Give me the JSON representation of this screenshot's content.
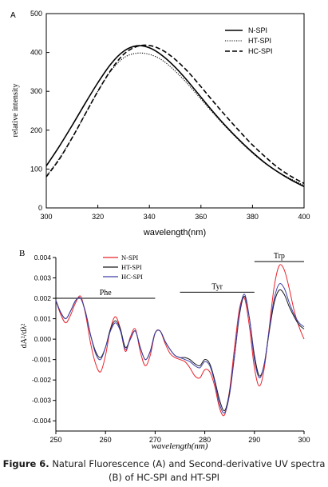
{
  "chart_data": [
    {
      "panel_label": "A",
      "type": "line",
      "xlabel": "wavelength(nm)",
      "ylabel": "relative intensity",
      "xlim": [
        300,
        400
      ],
      "ylim": [
        0,
        500
      ],
      "xticks": [
        "300",
        "320",
        "340",
        "360",
        "380",
        "400"
      ],
      "yticks": [
        "0",
        "100",
        "200",
        "300",
        "400",
        "500"
      ],
      "grid": false,
      "legend_position": "top-right",
      "series": [
        {
          "name": "N-SPI",
          "style": "solid",
          "x": [
            300,
            305,
            310,
            315,
            320,
            325,
            330,
            335,
            340,
            345,
            350,
            355,
            360,
            365,
            370,
            375,
            380,
            385,
            390,
            395,
            400
          ],
          "y": [
            108,
            158,
            212,
            268,
            322,
            370,
            403,
            417,
            412,
            392,
            362,
            325,
            285,
            245,
            208,
            174,
            143,
            115,
            92,
            72,
            55
          ]
        },
        {
          "name": "HT-SPI",
          "style": "dotted",
          "x": [
            300,
            305,
            310,
            315,
            320,
            325,
            330,
            335,
            340,
            345,
            350,
            355,
            360,
            365,
            370,
            375,
            380,
            385,
            390,
            395,
            400
          ],
          "y": [
            82,
            127,
            180,
            240,
            300,
            352,
            386,
            398,
            395,
            380,
            352,
            318,
            280,
            242,
            206,
            172,
            141,
            114,
            92,
            74,
            58
          ]
        },
        {
          "name": "HC-SPI",
          "style": "dashed",
          "x": [
            300,
            305,
            310,
            315,
            320,
            325,
            330,
            335,
            340,
            345,
            350,
            355,
            360,
            365,
            370,
            375,
            380,
            385,
            390,
            395,
            400
          ],
          "y": [
            80,
            125,
            180,
            240,
            300,
            354,
            395,
            415,
            418,
            406,
            382,
            350,
            312,
            272,
            234,
            197,
            162,
            131,
            103,
            81,
            63
          ]
        }
      ]
    },
    {
      "panel_label": "B",
      "type": "line",
      "xlabel": "wavelength(nm)",
      "ylabel": "dA²/dλ²",
      "xlim": [
        250,
        300
      ],
      "ylim": [
        -0.0045,
        0.004
      ],
      "xticks": [
        "250",
        "260",
        "270",
        "280",
        "290",
        "300"
      ],
      "yticks": [
        "0.004",
        "0.003",
        "0.002",
        "0.001",
        "0.000",
        "-0.001",
        "-0.002",
        "-0.003",
        "-0.004"
      ],
      "grid": false,
      "legend_position": "top-left",
      "annotations": [
        {
          "text": "Phe",
          "x_range": [
            250,
            270
          ]
        },
        {
          "text": "Tyr",
          "x_range": [
            275,
            290
          ]
        },
        {
          "text": "Trp",
          "x_range": [
            290,
            300
          ]
        }
      ],
      "series": [
        {
          "name": "N-SPI",
          "color": "#e8242c",
          "x": [
            250,
            251,
            252,
            253,
            254,
            255,
            256,
            257,
            258,
            259,
            260,
            261,
            262,
            263,
            264,
            265,
            266,
            267,
            268,
            269,
            270,
            271,
            272,
            273,
            274,
            275,
            276,
            277,
            278,
            279,
            280,
            281,
            282,
            283,
            284,
            285,
            286,
            287,
            288,
            289,
            290,
            291,
            292,
            293,
            294,
            295,
            296,
            297,
            298,
            299,
            300
          ],
          "y": [
            0.0019,
            0.0012,
            0.0008,
            0.0012,
            0.0018,
            0.0021,
            0.0012,
            -0.0002,
            -0.0012,
            -0.0016,
            -0.0008,
            0.0005,
            0.0011,
            0.0005,
            -0.0006,
            0.0001,
            0.0005,
            -0.0006,
            -0.0013,
            -0.0008,
            0.0003,
            0.0004,
            -0.0002,
            -0.0007,
            -0.0009,
            -0.001,
            -0.0011,
            -0.0014,
            -0.0018,
            -0.0019,
            -0.0015,
            -0.0016,
            -0.0023,
            -0.0034,
            -0.0037,
            -0.0025,
            -0.0004,
            0.0015,
            0.002,
            0.0006,
            -0.0014,
            -0.0023,
            -0.0014,
            0.0006,
            0.0026,
            0.0036,
            0.0034,
            0.0025,
            0.0014,
            0.0006,
            0.0
          ]
        },
        {
          "name": "HT-SPI",
          "color": "#1a1a1a",
          "x": [
            250,
            251,
            252,
            253,
            254,
            255,
            256,
            257,
            258,
            259,
            260,
            261,
            262,
            263,
            264,
            265,
            266,
            267,
            268,
            269,
            270,
            271,
            272,
            273,
            274,
            275,
            276,
            277,
            278,
            279,
            280,
            281,
            282,
            283,
            284,
            285,
            286,
            287,
            288,
            289,
            290,
            291,
            292,
            293,
            294,
            295,
            296,
            297,
            298,
            299,
            300
          ],
          "y": [
            0.0019,
            0.0013,
            0.001,
            0.0014,
            0.0019,
            0.002,
            0.0013,
            0.0002,
            -0.0006,
            -0.0009,
            -0.0004,
            0.0005,
            0.0009,
            0.0005,
            -0.0004,
            0.0,
            0.0004,
            -0.0004,
            -0.001,
            -0.0006,
            0.0003,
            0.0004,
            -0.0001,
            -0.0005,
            -0.0008,
            -0.0009,
            -0.0009,
            -0.001,
            -0.0012,
            -0.0013,
            -0.001,
            -0.0012,
            -0.002,
            -0.003,
            -0.0035,
            -0.0026,
            -0.0008,
            0.0012,
            0.0021,
            0.001,
            -0.0008,
            -0.0018,
            -0.0012,
            0.0004,
            0.0018,
            0.0024,
            0.0022,
            0.0016,
            0.0011,
            0.0007,
            0.0005
          ]
        },
        {
          "name": "HC-SPI",
          "color": "#3e3ea8",
          "x": [
            250,
            251,
            252,
            253,
            254,
            255,
            256,
            257,
            258,
            259,
            260,
            261,
            262,
            263,
            264,
            265,
            266,
            267,
            268,
            269,
            270,
            271,
            272,
            273,
            274,
            275,
            276,
            277,
            278,
            279,
            280,
            281,
            282,
            283,
            284,
            285,
            286,
            287,
            288,
            289,
            290,
            291,
            292,
            293,
            294,
            295,
            296,
            297,
            298,
            299,
            300
          ],
          "y": [
            0.0019,
            0.0013,
            0.001,
            0.0014,
            0.0019,
            0.002,
            0.0013,
            0.0002,
            -0.0007,
            -0.001,
            -0.0004,
            0.0004,
            0.0008,
            0.0004,
            -0.0005,
            0.0,
            0.0004,
            -0.0004,
            -0.001,
            -0.0006,
            0.0003,
            0.0004,
            -0.0001,
            -0.0005,
            -0.0008,
            -0.0009,
            -0.001,
            -0.0011,
            -0.0013,
            -0.0014,
            -0.0011,
            -0.0013,
            -0.0021,
            -0.0032,
            -0.0036,
            -0.0027,
            -0.0008,
            0.0013,
            0.0022,
            0.001,
            -0.001,
            -0.0019,
            -0.0012,
            0.0005,
            0.002,
            0.0027,
            0.0025,
            0.0018,
            0.0012,
            0.0008,
            0.0006
          ]
        }
      ]
    }
  ],
  "caption": {
    "label": "Figure 6.",
    "text": "Natural Fluorescence (A) and Second-derivative UV spectra (B) of HC-SPI and HT-SPI"
  }
}
